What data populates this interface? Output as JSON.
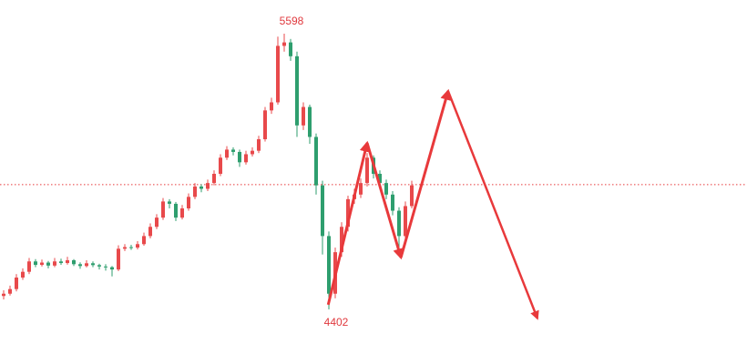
{
  "chart_data": {
    "type": "candlestick",
    "up_color": "#e8494b",
    "down_color": "#2e9e6e",
    "line_color": "#e8393b",
    "xlim": [
      -0.57,
      116.57
    ],
    "ylim": [
      4165,
      5744
    ],
    "ohlc": [
      [
        4460,
        4485,
        4445,
        4470
      ],
      [
        4470,
        4505,
        4462,
        4490
      ],
      [
        4490,
        4555,
        4480,
        4540
      ],
      [
        4540,
        4580,
        4530,
        4565
      ],
      [
        4565,
        4625,
        4555,
        4610
      ],
      [
        4610,
        4620,
        4585,
        4595
      ],
      [
        4595,
        4618,
        4588,
        4605
      ],
      [
        4605,
        4612,
        4580,
        4592
      ],
      [
        4592,
        4625,
        4585,
        4610
      ],
      [
        4610,
        4622,
        4595,
        4603
      ],
      [
        4603,
        4630,
        4596,
        4615
      ],
      [
        4615,
        4620,
        4590,
        4598
      ],
      [
        4598,
        4606,
        4578,
        4590
      ],
      [
        4590,
        4615,
        4584,
        4602
      ],
      [
        4602,
        4610,
        4585,
        4594
      ],
      [
        4594,
        4600,
        4575,
        4588
      ],
      [
        4588,
        4598,
        4570,
        4585
      ],
      [
        4585,
        4590,
        4545,
        4575
      ],
      [
        4575,
        4680,
        4568,
        4665
      ],
      [
        4665,
        4685,
        4655,
        4672
      ],
      [
        4672,
        4682,
        4660,
        4670
      ],
      [
        4670,
        4698,
        4662,
        4685
      ],
      [
        4685,
        4735,
        4678,
        4720
      ],
      [
        4720,
        4775,
        4710,
        4760
      ],
      [
        4760,
        4815,
        4750,
        4800
      ],
      [
        4800,
        4885,
        4790,
        4870
      ],
      [
        4870,
        4880,
        4840,
        4860
      ],
      [
        4860,
        4868,
        4785,
        4800
      ],
      [
        4800,
        4855,
        4792,
        4840
      ],
      [
        4840,
        4905,
        4830,
        4890
      ],
      [
        4890,
        4950,
        4880,
        4935
      ],
      [
        4935,
        4945,
        4910,
        4925
      ],
      [
        4925,
        4965,
        4915,
        4950
      ],
      [
        4950,
        5005,
        4940,
        4990
      ],
      [
        4990,
        5075,
        4980,
        5060
      ],
      [
        5060,
        5110,
        5050,
        5095
      ],
      [
        5095,
        5105,
        5070,
        5085
      ],
      [
        5085,
        5095,
        5020,
        5040
      ],
      [
        5040,
        5090,
        5030,
        5075
      ],
      [
        5075,
        5105,
        5065,
        5090
      ],
      [
        5090,
        5155,
        5080,
        5140
      ],
      [
        5140,
        5280,
        5130,
        5265
      ],
      [
        5265,
        5320,
        5250,
        5300
      ],
      [
        5300,
        5585,
        5290,
        5545
      ],
      [
        5545,
        5598,
        5520,
        5560
      ],
      [
        5560,
        5575,
        5480,
        5500
      ],
      [
        5500,
        5520,
        5150,
        5200
      ],
      [
        5200,
        5300,
        5180,
        5280
      ],
      [
        5280,
        5290,
        5120,
        5150
      ],
      [
        5150,
        5165,
        4900,
        4940
      ],
      [
        4940,
        4960,
        4640,
        4720
      ],
      [
        4720,
        4740,
        4402,
        4470
      ],
      [
        4470,
        4670,
        4450,
        4650
      ],
      [
        4650,
        4780,
        4630,
        4760
      ],
      [
        4760,
        4895,
        4740,
        4880
      ],
      [
        4880,
        4925,
        4860,
        4900
      ],
      [
        4900,
        4970,
        4885,
        4950
      ],
      [
        4950,
        5080,
        4935,
        5060
      ],
      [
        5060,
        5070,
        4970,
        4990
      ],
      [
        4990,
        5005,
        4925,
        4950
      ],
      [
        4950,
        4965,
        4880,
        4900
      ],
      [
        4900,
        4915,
        4810,
        4830
      ],
      [
        4830,
        4845,
        4660,
        4720
      ],
      [
        4720,
        4870,
        4705,
        4850
      ],
      [
        4850,
        4960,
        4840,
        4940
      ]
    ],
    "ref_line": 4943,
    "projection": {
      "x": [
        50.9,
        57,
        62.3,
        69.7,
        83.7
      ],
      "values": [
        4422,
        5124,
        4627,
        5349,
        4363
      ]
    },
    "annotations": [
      {
        "label": "5598",
        "value": 5598,
        "x": 44
      },
      {
        "label": "4402",
        "value": 4402,
        "x": 51
      }
    ]
  }
}
